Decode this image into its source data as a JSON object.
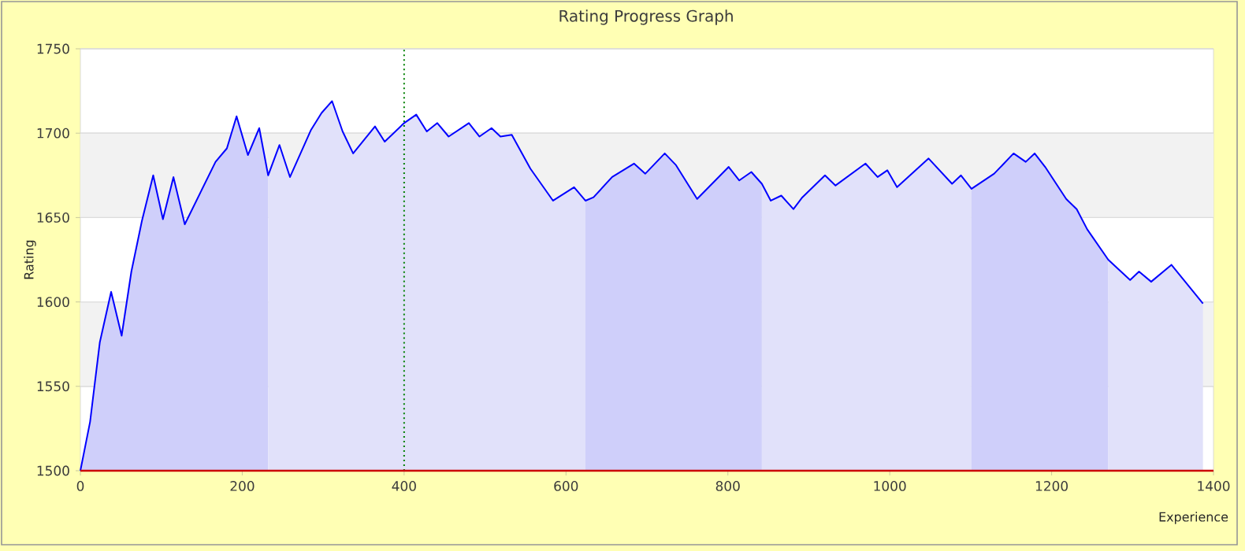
{
  "chart_data": {
    "type": "line",
    "title": "Rating Progress Graph",
    "xlabel": "Experience",
    "ylabel": "Rating",
    "xlim": [
      0,
      1400
    ],
    "xticks": [
      0,
      200,
      400,
      600,
      800,
      1000,
      1200,
      1400
    ],
    "ylim": [
      1500,
      1750
    ],
    "yticks": [
      1500,
      1550,
      1600,
      1650,
      1700,
      1750
    ],
    "grid": "y",
    "marker": "none",
    "line_style": "solid",
    "bands": [
      {
        "axis": "y",
        "from": 1550,
        "to": 1600,
        "color": "#f2f2f2"
      },
      {
        "axis": "y",
        "from": 1650,
        "to": 1700,
        "color": "#f2f2f2"
      }
    ],
    "ref_lines": [
      {
        "axis": "x",
        "value": 400,
        "color": "#008000",
        "line_style": "dotted"
      }
    ],
    "series": [
      {
        "type": "area",
        "color": "#cfcffa",
        "x": [
          0,
          12,
          24,
          38,
          51,
          63,
          76,
          90,
          102,
          115,
          129,
          167,
          181,
          193,
          207,
          221,
          232
        ],
        "values": [
          1500,
          1529,
          1576,
          1606,
          1580,
          1618,
          1648,
          1675,
          1649,
          1674,
          1646,
          1683,
          1691,
          1710,
          1687,
          1703,
          1675
        ]
      },
      {
        "type": "area",
        "color": "#e1e1fa",
        "x": [
          232,
          246,
          259,
          285,
          298,
          311,
          324,
          337,
          364,
          376,
          400,
          415,
          428,
          441,
          455,
          480,
          493,
          508,
          519,
          533,
          556,
          584,
          597,
          610,
          624
        ],
        "values": [
          1675,
          1693,
          1674,
          1702,
          1712,
          1719,
          1701,
          1688,
          1704,
          1695,
          1706,
          1711,
          1701,
          1706,
          1698,
          1706,
          1698,
          1703,
          1698,
          1699,
          1679,
          1660,
          1664,
          1668,
          1660
        ]
      },
      {
        "type": "area",
        "color": "#cfcffa",
        "x": [
          624,
          634,
          657,
          684,
          698,
          722,
          736,
          762,
          801,
          814,
          829,
          842
        ],
        "values": [
          1660,
          1662,
          1674,
          1682,
          1676,
          1688,
          1681,
          1661,
          1680,
          1672,
          1677,
          1670
        ]
      },
      {
        "type": "area",
        "color": "#e1e1fa",
        "x": [
          842,
          853,
          866,
          881,
          892,
          920,
          933,
          970,
          985,
          997,
          1009,
          1048,
          1077,
          1088,
          1101
        ],
        "values": [
          1670,
          1660,
          1663,
          1655,
          1662,
          1675,
          1669,
          1682,
          1674,
          1678,
          1668,
          1685,
          1670,
          1675,
          1667
        ]
      },
      {
        "type": "area",
        "color": "#cfcffa",
        "x": [
          1101,
          1129,
          1153,
          1168,
          1179,
          1192,
          1218,
          1231,
          1244,
          1270
        ],
        "values": [
          1667,
          1676,
          1688,
          1683,
          1688,
          1680,
          1661,
          1655,
          1643,
          1625
        ]
      },
      {
        "type": "area",
        "color": "#e1e1fa",
        "x": [
          1270,
          1297,
          1308,
          1323,
          1348,
          1387
        ],
        "values": [
          1625,
          1613,
          1618,
          1612,
          1622,
          1599
        ]
      },
      {
        "color": "#0000ff",
        "x": [
          0,
          12,
          24,
          38,
          51,
          63,
          76,
          90,
          102,
          115,
          129,
          167,
          181,
          193,
          207,
          221,
          232,
          246,
          259,
          285,
          298,
          311,
          324,
          337,
          364,
          376,
          400,
          415,
          428,
          441,
          455,
          480,
          493,
          508,
          519,
          533,
          556,
          584,
          597,
          610,
          624,
          634,
          657,
          684,
          698,
          722,
          736,
          762,
          801,
          814,
          829,
          842,
          853,
          866,
          881,
          892,
          920,
          933,
          970,
          985,
          997,
          1009,
          1048,
          1077,
          1088,
          1101,
          1129,
          1153,
          1168,
          1179,
          1192,
          1218,
          1231,
          1244,
          1270,
          1297,
          1308,
          1323,
          1348,
          1387
        ],
        "values": [
          1500,
          1529,
          1576,
          1606,
          1580,
          1618,
          1648,
          1675,
          1649,
          1674,
          1646,
          1683,
          1691,
          1710,
          1687,
          1703,
          1675,
          1693,
          1674,
          1702,
          1712,
          1719,
          1701,
          1688,
          1704,
          1695,
          1706,
          1711,
          1701,
          1706,
          1698,
          1706,
          1698,
          1703,
          1698,
          1699,
          1679,
          1660,
          1664,
          1668,
          1660,
          1662,
          1674,
          1682,
          1676,
          1688,
          1681,
          1661,
          1680,
          1672,
          1677,
          1670,
          1660,
          1663,
          1655,
          1662,
          1675,
          1669,
          1682,
          1674,
          1678,
          1668,
          1685,
          1670,
          1675,
          1667,
          1676,
          1688,
          1683,
          1688,
          1680,
          1661,
          1655,
          1643,
          1625,
          1613,
          1618,
          1612,
          1622,
          1599
        ]
      }
    ]
  }
}
